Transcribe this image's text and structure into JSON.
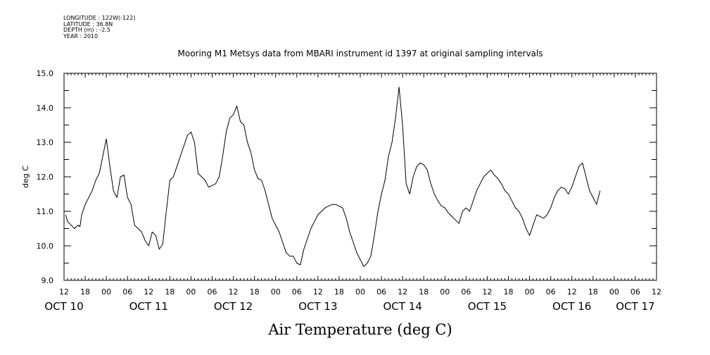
{
  "metadata": [
    "LONGITUDE : 122W(-122)",
    "LATITUDE : 36.8N",
    "DEPTH (m) : -2.5",
    "YEAR : 2010"
  ],
  "chart_data": {
    "type": "line",
    "title": "Mooring M1 Metsys data from MBARI instrument id 1397 at original sampling intervals",
    "xlabel": "Air Temperature (deg C)",
    "ylabel": "deg C",
    "ylim": [
      9.0,
      15.0
    ],
    "yticks": [
      "9.0",
      "10.0",
      "11.0",
      "12.0",
      "13.0",
      "14.0",
      "15.0"
    ],
    "xlim_hours": [
      0,
      168
    ],
    "x_units": "hours since Oct 10 12:00",
    "hour_tick_labels": [
      "12",
      "18",
      "00",
      "06",
      "12",
      "18",
      "00",
      "06",
      "12",
      "18",
      "00",
      "06",
      "12",
      "18",
      "00",
      "06",
      "12",
      "18",
      "00",
      "06",
      "12",
      "18",
      "00",
      "06",
      "12",
      "18",
      "00",
      "06",
      "12"
    ],
    "day_labels": [
      {
        "label": "OCT 10",
        "hour": 0
      },
      {
        "label": "OCT 11",
        "hour": 24
      },
      {
        "label": "OCT 12",
        "hour": 48
      },
      {
        "label": "OCT 13",
        "hour": 72
      },
      {
        "label": "OCT 14",
        "hour": 96
      },
      {
        "label": "OCT 15",
        "hour": 120
      },
      {
        "label": "OCT 16",
        "hour": 144
      },
      {
        "label": "OCT 17",
        "hour": 162
      }
    ],
    "grid": false,
    "series": [
      {
        "points": [
          [
            0.5,
            10.9
          ],
          [
            1,
            10.7
          ],
          [
            2,
            10.6
          ],
          [
            3,
            10.5
          ],
          [
            4,
            10.6
          ],
          [
            4.5,
            10.55
          ],
          [
            5,
            10.9
          ],
          [
            6,
            11.2
          ],
          [
            7,
            11.4
          ],
          [
            8,
            11.6
          ],
          [
            9,
            11.9
          ],
          [
            10,
            12.1
          ],
          [
            11,
            12.6
          ],
          [
            12,
            13.1
          ],
          [
            13,
            12.3
          ],
          [
            14,
            11.6
          ],
          [
            15,
            11.4
          ],
          [
            16,
            12.0
          ],
          [
            17,
            12.05
          ],
          [
            18,
            11.4
          ],
          [
            19,
            11.2
          ],
          [
            20,
            10.6
          ],
          [
            21,
            10.5
          ],
          [
            22,
            10.4
          ],
          [
            23,
            10.15
          ],
          [
            24,
            10.0
          ],
          [
            25,
            10.4
          ],
          [
            26,
            10.3
          ],
          [
            27,
            9.9
          ],
          [
            28,
            10.05
          ],
          [
            29,
            11.0
          ],
          [
            30,
            11.9
          ],
          [
            31,
            12.0
          ],
          [
            32,
            12.3
          ],
          [
            33,
            12.6
          ],
          [
            34,
            12.9
          ],
          [
            35,
            13.2
          ],
          [
            36,
            13.3
          ],
          [
            37,
            13.0
          ],
          [
            38,
            12.1
          ],
          [
            39,
            12.0
          ],
          [
            40,
            11.9
          ],
          [
            41,
            11.7
          ],
          [
            42,
            11.75
          ],
          [
            43,
            11.8
          ],
          [
            44,
            12.0
          ],
          [
            45,
            12.6
          ],
          [
            46,
            13.3
          ],
          [
            47,
            13.7
          ],
          [
            48,
            13.8
          ],
          [
            49,
            14.05
          ],
          [
            50,
            13.6
          ],
          [
            51,
            13.5
          ],
          [
            52,
            13.0
          ],
          [
            53,
            12.7
          ],
          [
            54,
            12.2
          ],
          [
            55,
            11.95
          ],
          [
            56,
            11.9
          ],
          [
            57,
            11.6
          ],
          [
            58,
            11.2
          ],
          [
            59,
            10.8
          ],
          [
            60,
            10.6
          ],
          [
            61,
            10.4
          ],
          [
            62,
            10.1
          ],
          [
            63,
            9.8
          ],
          [
            64,
            9.7
          ],
          [
            65,
            9.7
          ],
          [
            66,
            9.5
          ],
          [
            67,
            9.45
          ],
          [
            68,
            9.9
          ],
          [
            69,
            10.2
          ],
          [
            70,
            10.5
          ],
          [
            71,
            10.7
          ],
          [
            72,
            10.9
          ],
          [
            73,
            11.0
          ],
          [
            74,
            11.1
          ],
          [
            75,
            11.15
          ],
          [
            76,
            11.2
          ],
          [
            77,
            11.2
          ],
          [
            78,
            11.15
          ],
          [
            79,
            11.1
          ],
          [
            80,
            10.8
          ],
          [
            81,
            10.4
          ],
          [
            82,
            10.1
          ],
          [
            83,
            9.8
          ],
          [
            84,
            9.6
          ],
          [
            85,
            9.4
          ],
          [
            86,
            9.5
          ],
          [
            87,
            9.7
          ],
          [
            88,
            10.3
          ],
          [
            89,
            11.0
          ],
          [
            90,
            11.5
          ],
          [
            91,
            11.9
          ],
          [
            92,
            12.6
          ],
          [
            93,
            13.0
          ],
          [
            94,
            13.7
          ],
          [
            95,
            14.6
          ],
          [
            96,
            13.5
          ],
          [
            97,
            11.8
          ],
          [
            98,
            11.5
          ],
          [
            99,
            12.0
          ],
          [
            100,
            12.3
          ],
          [
            101,
            12.4
          ],
          [
            102,
            12.35
          ],
          [
            103,
            12.2
          ],
          [
            104,
            11.8
          ],
          [
            105,
            11.5
          ],
          [
            106,
            11.3
          ],
          [
            107,
            11.15
          ],
          [
            108,
            11.1
          ],
          [
            109,
            10.95
          ],
          [
            110,
            10.85
          ],
          [
            111,
            10.75
          ],
          [
            112,
            10.65
          ],
          [
            113,
            11.0
          ],
          [
            114,
            11.1
          ],
          [
            115,
            11.0
          ],
          [
            116,
            11.3
          ],
          [
            117,
            11.6
          ],
          [
            118,
            11.8
          ],
          [
            119,
            12.0
          ],
          [
            120,
            12.1
          ],
          [
            121,
            12.2
          ],
          [
            122,
            12.05
          ],
          [
            123,
            11.95
          ],
          [
            124,
            11.8
          ],
          [
            125,
            11.6
          ],
          [
            126,
            11.5
          ],
          [
            127,
            11.3
          ],
          [
            128,
            11.1
          ],
          [
            129,
            11.0
          ],
          [
            130,
            10.8
          ],
          [
            131,
            10.5
          ],
          [
            132,
            10.3
          ],
          [
            133,
            10.6
          ],
          [
            134,
            10.9
          ],
          [
            135,
            10.85
          ],
          [
            136,
            10.8
          ],
          [
            137,
            10.9
          ],
          [
            138,
            11.1
          ],
          [
            139,
            11.4
          ],
          [
            140,
            11.6
          ],
          [
            141,
            11.7
          ],
          [
            142,
            11.65
          ],
          [
            143,
            11.5
          ],
          [
            144,
            11.7
          ],
          [
            145,
            12.0
          ],
          [
            146,
            12.3
          ],
          [
            147,
            12.4
          ],
          [
            148,
            12.0
          ],
          [
            149,
            11.6
          ],
          [
            150,
            11.4
          ],
          [
            151,
            11.2
          ],
          [
            152,
            11.6
          ]
        ]
      }
    ]
  }
}
